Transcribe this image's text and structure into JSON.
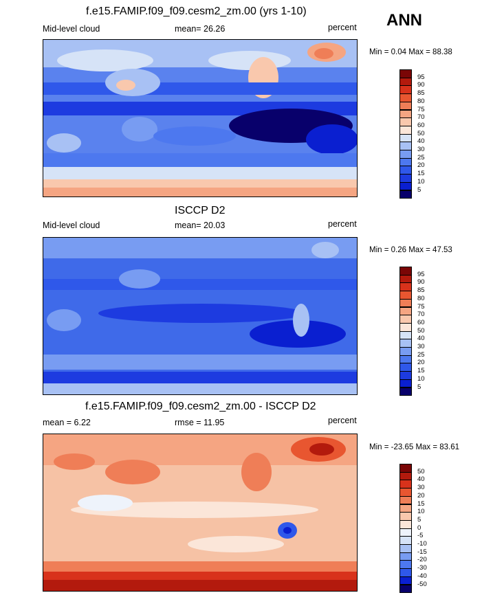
{
  "season": "ANN",
  "panels": [
    {
      "title": "f.e15.FAMIP.f09_f09.cesm2_zm.00 (yrs 1-10)",
      "left_label": "Mid-level cloud",
      "mean_label": "mean=  26.26",
      "units": "percent",
      "minmax": "Min =   0.04 Max =  88.38",
      "colorbar_ticks": [
        "95",
        "90",
        "85",
        "80",
        "75",
        "70",
        "60",
        "50",
        "40",
        "30",
        "25",
        "20",
        "15",
        "10",
        "5"
      ],
      "palette": [
        "#08006b",
        "#0a1fd0",
        "#1d3be0",
        "#2f58ea",
        "#4d78ef",
        "#789cf2",
        "#a8c1f4",
        "#d6e3f7",
        "#fbe6d9",
        "#f9c8ad",
        "#f5a582",
        "#ef7e57",
        "#e85630",
        "#d8321b",
        "#b31a0d",
        "#7a0606"
      ],
      "base_color": "#5a82ee"
    },
    {
      "title": "ISCCP D2",
      "left_label": "Mid-level cloud",
      "mean_label": "mean=  20.03",
      "units": "percent",
      "minmax": "Min =   0.26 Max =  47.53",
      "colorbar_ticks": [
        "95",
        "90",
        "85",
        "80",
        "75",
        "70",
        "60",
        "50",
        "40",
        "30",
        "25",
        "20",
        "15",
        "10",
        "5"
      ],
      "palette": [
        "#08006b",
        "#0a1fd0",
        "#1d3be0",
        "#2f58ea",
        "#4d78ef",
        "#789cf2",
        "#a8c1f4",
        "#d6e3f7",
        "#fbe6d9",
        "#f9c8ad",
        "#f5a582",
        "#ef7e57",
        "#e85630",
        "#d8321b",
        "#b31a0d",
        "#7a0606"
      ],
      "base_color": "#3f6ae9"
    },
    {
      "title": "f.e15.FAMIP.f09_f09.cesm2_zm.00 - ISCCP D2",
      "left_label": "mean =   6.22",
      "mean_label": "rmse =  11.95",
      "units": "percent",
      "minmax": "Min = -23.65 Max =  83.61",
      "colorbar_ticks": [
        "50",
        "40",
        "30",
        "20",
        "15",
        "10",
        "5",
        "0",
        "-5",
        "-10",
        "-15",
        "-20",
        "-30",
        "-40",
        "-50"
      ],
      "palette": [
        "#08006b",
        "#0a1fd0",
        "#2f58ea",
        "#4d78ef",
        "#789cf2",
        "#a8c1f4",
        "#d6e3f7",
        "#eef3fb",
        "#fbe6d9",
        "#f9c8ad",
        "#f5a582",
        "#ef7e57",
        "#e85630",
        "#d8321b",
        "#b31a0d",
        "#7a0606"
      ],
      "base_color": "#f6c2a5"
    }
  ]
}
